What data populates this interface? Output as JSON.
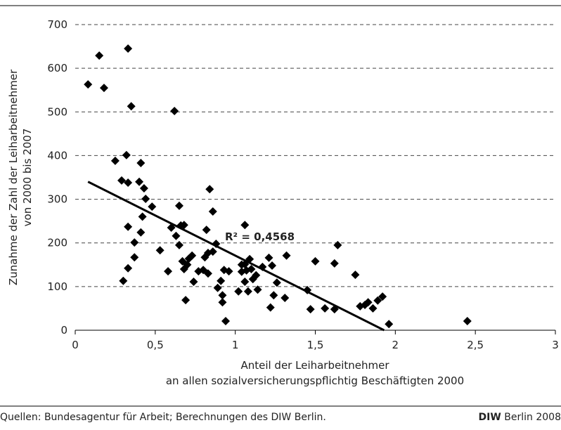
{
  "chart_data": {
    "type": "scatter",
    "x_label": [
      "Anteil der Leiharbeitnehmer",
      "an allen sozialversicherungspflichtig Beschäftigten 2000"
    ],
    "y_label": [
      "Zunahme der Zahl der Leiharbeitnehmer",
      "von 2000 bis 2007"
    ],
    "annotation": "R² = 0,4568",
    "color": "#000000",
    "grid": true,
    "xlim": [
      0,
      3
    ],
    "xticks": [
      0,
      {
        "value": 0.5,
        "label": "0,5"
      },
      1,
      {
        "value": 1.5,
        "label": "1,5"
      },
      2,
      {
        "value": 2.5,
        "label": "2,5"
      },
      3
    ],
    "ylim": [
      0,
      700
    ],
    "yticks": [
      0,
      100,
      200,
      300,
      400,
      500,
      600,
      700
    ],
    "x": [
      0.08,
      0.15,
      0.18,
      0.33,
      0.35,
      0.62,
      0.25,
      0.32,
      0.29,
      0.33,
      0.4,
      0.41,
      0.43,
      0.44,
      0.48,
      0.42,
      0.41,
      0.33,
      0.37,
      0.37,
      0.33,
      0.3,
      0.53,
      0.58,
      0.6,
      0.65,
      0.66,
      0.68,
      0.63,
      0.65,
      0.67,
      0.68,
      0.7,
      0.71,
      0.73,
      0.74,
      0.69,
      0.77,
      0.8,
      0.81,
      0.83,
      0.83,
      0.82,
      0.84,
      0.86,
      0.86,
      0.88,
      0.89,
      0.91,
      0.92,
      0.92,
      0.94,
      0.93,
      0.96,
      1.02,
      1.04,
      1.04,
      1.06,
      1.06,
      1.06,
      1.07,
      1.08,
      1.09,
      1.1,
      1.11,
      1.13,
      1.14,
      1.17,
      1.21,
      1.23,
      1.22,
      1.24,
      1.26,
      1.31,
      1.32,
      1.45,
      1.47,
      1.5,
      1.56,
      1.62,
      1.62,
      1.64,
      1.75,
      1.78,
      1.81,
      1.83,
      1.86,
      1.89,
      1.92,
      1.96,
      2.45
    ],
    "values": [
      563,
      629,
      555,
      645,
      513,
      502,
      388,
      401,
      343,
      338,
      340,
      383,
      325,
      301,
      283,
      260,
      224,
      237,
      201,
      167,
      142,
      113,
      183,
      135,
      235,
      285,
      240,
      241,
      216,
      195,
      158,
      140,
      150,
      164,
      171,
      111,
      69,
      135,
      138,
      167,
      177,
      130,
      230,
      323,
      272,
      180,
      198,
      97,
      113,
      80,
      64,
      21,
      138,
      135,
      89,
      134,
      150,
      241,
      151,
      111,
      137,
      89,
      163,
      140,
      117,
      126,
      93,
      145,
      166,
      148,
      52,
      80,
      109,
      74,
      171,
      92,
      48,
      158,
      50,
      48,
      153,
      195,
      127,
      55,
      58,
      64,
      50,
      68,
      77,
      14,
      21
    ],
    "trendline": {
      "x": [
        0.08,
        1.93
      ],
      "y": [
        340,
        0
      ]
    }
  },
  "footer": {
    "source": "Quellen: Bundesagentur für Arbeit; Berechnungen des DIW Berlin.",
    "credit_bold": "DIW",
    "credit": "Berlin 2008"
  }
}
